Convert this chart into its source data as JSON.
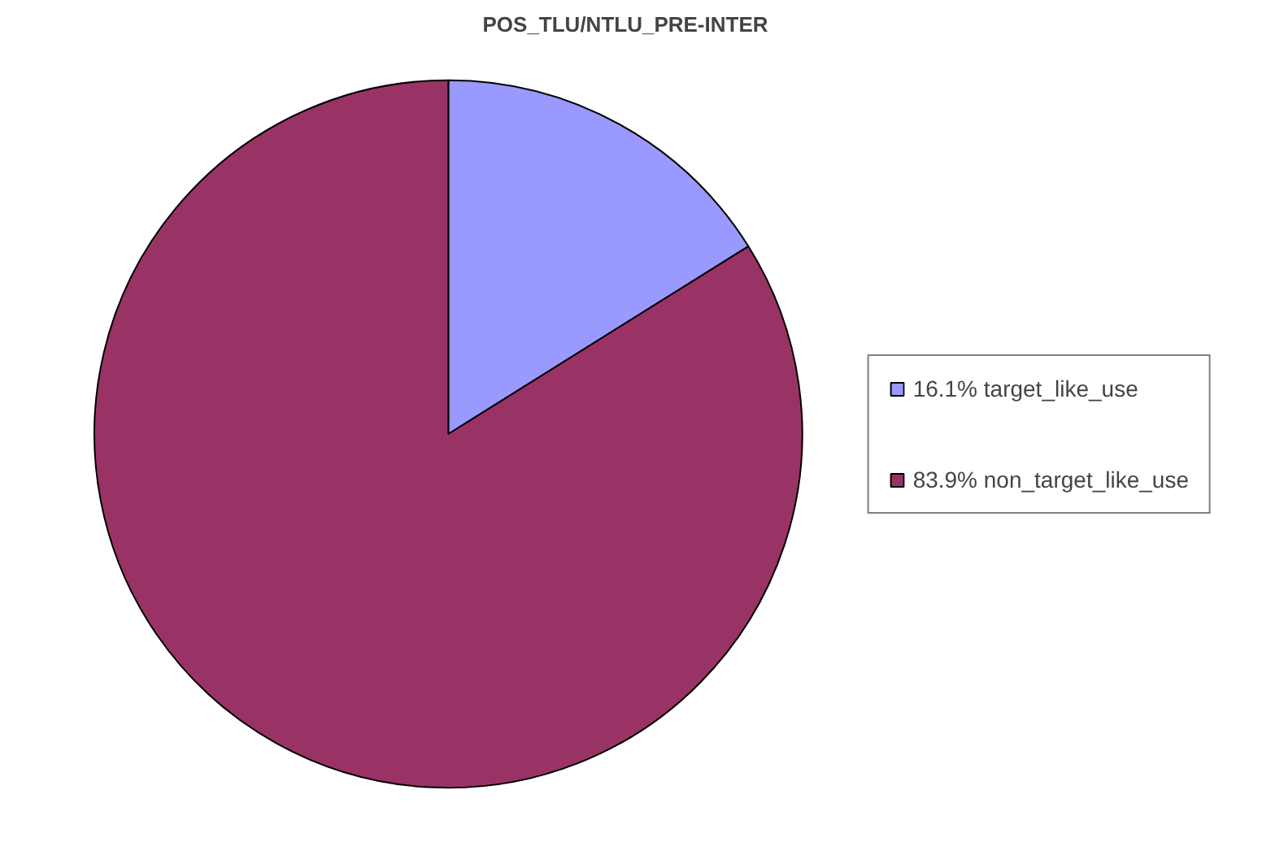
{
  "chart_data": {
    "type": "pie",
    "title": "POS_TLU/NTLU_PRE-INTER",
    "categories": [
      "target_like_use",
      "non_target_like_use"
    ],
    "values": [
      16.1,
      83.9
    ],
    "value_labels": [
      "16.1%",
      "83.9%"
    ],
    "colors": [
      "#9999ff",
      "#993366"
    ],
    "legend": "right"
  }
}
